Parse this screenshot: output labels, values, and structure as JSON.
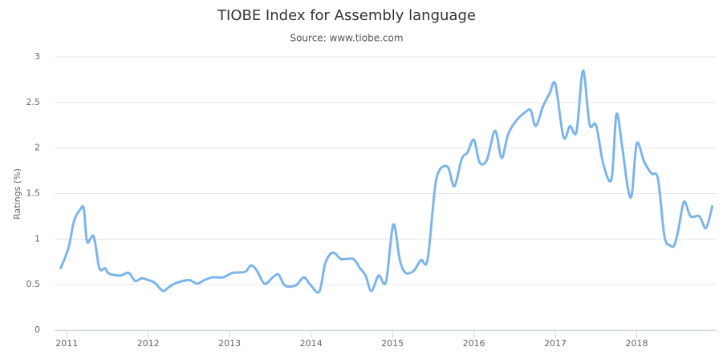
{
  "chart_data": {
    "type": "line",
    "title": "TIOBE Index for Assembly language",
    "subtitle": "Source: www.tiobe.com",
    "y_label": "Ratings (%)",
    "x": [
      2010.92,
      2011.02,
      2011.09,
      2011.17,
      2011.21,
      2011.25,
      2011.33,
      2011.4,
      2011.47,
      2011.52,
      2011.66,
      2011.76,
      2011.84,
      2011.92,
      2012.0,
      2012.08,
      2012.18,
      2012.25,
      2012.35,
      2012.5,
      2012.6,
      2012.69,
      2012.79,
      2012.92,
      2013.04,
      2013.19,
      2013.26,
      2013.33,
      2013.43,
      2013.53,
      2013.6,
      2013.68,
      2013.81,
      2013.91,
      2013.99,
      2014.1,
      2014.17,
      2014.24,
      2014.3,
      2014.37,
      2014.52,
      2014.6,
      2014.67,
      2014.74,
      2014.83,
      2014.92,
      2015.01,
      2015.09,
      2015.16,
      2015.26,
      2015.35,
      2015.43,
      2015.52,
      2015.58,
      2015.68,
      2015.76,
      2015.85,
      2015.92,
      2016.0,
      2016.07,
      2016.16,
      2016.26,
      2016.34,
      2016.42,
      2016.52,
      2016.64,
      2016.7,
      2016.76,
      2016.85,
      2016.93,
      2017.0,
      2017.1,
      2017.18,
      2017.26,
      2017.34,
      2017.42,
      2017.5,
      2017.59,
      2017.69,
      2017.75,
      2017.82,
      2017.89,
      2017.94,
      2018.0,
      2018.09,
      2018.18,
      2018.26,
      2018.34,
      2018.41,
      2018.46,
      2018.51,
      2018.58,
      2018.66,
      2018.77,
      2018.85,
      2018.93
    ],
    "series": [
      {
        "name": "Assembly language",
        "color": "#7cb5ec",
        "values": [
          0.67,
          0.9,
          1.2,
          1.33,
          1.33,
          0.97,
          1.03,
          0.68,
          0.68,
          0.62,
          0.6,
          0.63,
          0.54,
          0.57,
          0.55,
          0.52,
          0.43,
          0.47,
          0.52,
          0.55,
          0.51,
          0.55,
          0.58,
          0.58,
          0.63,
          0.64,
          0.71,
          0.66,
          0.51,
          0.58,
          0.61,
          0.49,
          0.49,
          0.58,
          0.5,
          0.42,
          0.72,
          0.84,
          0.84,
          0.78,
          0.78,
          0.68,
          0.6,
          0.43,
          0.6,
          0.53,
          1.16,
          0.77,
          0.63,
          0.65,
          0.77,
          0.77,
          1.55,
          1.76,
          1.79,
          1.58,
          1.88,
          1.95,
          2.09,
          1.84,
          1.87,
          2.19,
          1.89,
          2.15,
          2.3,
          2.4,
          2.41,
          2.24,
          2.46,
          2.6,
          2.7,
          2.12,
          2.24,
          2.18,
          2.85,
          2.26,
          2.25,
          1.82,
          1.66,
          2.37,
          2.02,
          1.56,
          1.49,
          2.05,
          1.85,
          1.72,
          1.66,
          1.03,
          0.93,
          0.93,
          1.1,
          1.41,
          1.25,
          1.25,
          1.12,
          1.37
        ]
      }
    ],
    "xlim": [
      2010.85,
      2018.98
    ],
    "xticks": [
      2011,
      2012,
      2013,
      2014,
      2015,
      2016,
      2017,
      2018
    ],
    "ylim": [
      0,
      3
    ],
    "yticks": [
      0,
      0.5,
      1,
      1.5,
      2,
      2.5,
      3
    ],
    "grid": true
  }
}
